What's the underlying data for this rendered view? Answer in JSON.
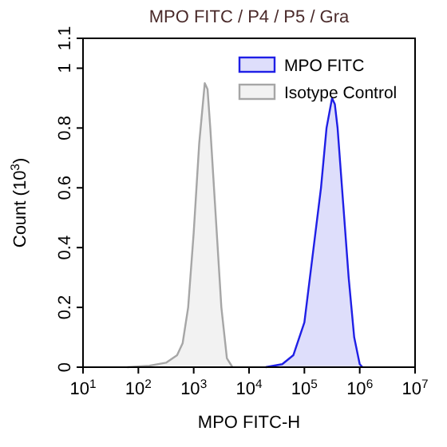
{
  "chart_data": {
    "type": "area",
    "title": "MPO FITC / P4 / P5 / Gra",
    "xlabel": "MPO FITC-H",
    "ylabel": "Count (10$^{3}$)",
    "log": "x",
    "xlim": [
      10,
      10000000
    ],
    "xticks": [
      {
        "value": 10,
        "label": "10$^{1}$"
      },
      {
        "value": 100,
        "label": "10$^{2}$"
      },
      {
        "value": 1000,
        "label": "10$^{3}$"
      },
      {
        "value": 10000,
        "label": "10$^{4}$"
      },
      {
        "value": 100000,
        "label": "10$^{5}$"
      },
      {
        "value": 1000000,
        "label": "10$^{6}$"
      },
      {
        "value": 10000000,
        "label": "10$^{7}$"
      }
    ],
    "ylim": [
      0,
      1.1
    ],
    "yticks": [
      0,
      0.2,
      0.4,
      0.6,
      0.8,
      1,
      1.1
    ],
    "legend": "top right",
    "grid": false,
    "series": [
      {
        "name": "MPO FITC",
        "color": "#1f1fe6",
        "x": [
          19953,
          39811,
          63096,
          100000,
          125893,
          158489,
          199526,
          251189,
          316228,
          354813,
          398107,
          501187,
          630957,
          794328,
          1000000,
          1122018
        ],
        "values": [
          0,
          0.01,
          0.04,
          0.15,
          0.3,
          0.45,
          0.6,
          0.8,
          0.9,
          0.88,
          0.8,
          0.55,
          0.3,
          0.1,
          0.01,
          0
        ]
      },
      {
        "name": "Isotype Control",
        "color": "#a6a6a6",
        "x": [
          63,
          158,
          316,
          501,
          631,
          794,
          1000,
          1259,
          1585,
          1778,
          1995,
          2512,
          3162,
          3981,
          5012
        ],
        "values": [
          0,
          0.005,
          0.015,
          0.04,
          0.08,
          0.2,
          0.45,
          0.75,
          0.95,
          0.93,
          0.8,
          0.5,
          0.2,
          0.03,
          0
        ]
      }
    ]
  }
}
